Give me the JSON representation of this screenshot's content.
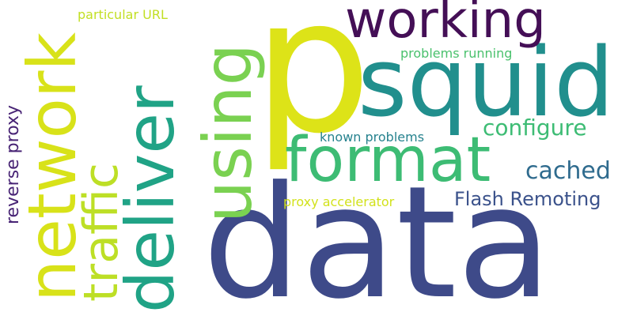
{
  "words": [
    {
      "text": "data",
      "color": "#3e4a89"
    },
    {
      "text": "p",
      "color": "#dde318"
    },
    {
      "text": "squid",
      "color": "#218f8d"
    },
    {
      "text": "format",
      "color": "#3dbc74"
    },
    {
      "text": "using",
      "color": "#7ad151"
    },
    {
      "text": "deliver",
      "color": "#20a386"
    },
    {
      "text": "network",
      "color": "#d8e219"
    },
    {
      "text": "working",
      "color": "#440f56"
    },
    {
      "text": "traffic",
      "color": "#bddf26"
    },
    {
      "text": "configure",
      "color": "#3dbc74"
    },
    {
      "text": "cached",
      "color": "#2f6b8e"
    },
    {
      "text": "Flash Remoting",
      "color": "#3b528b"
    },
    {
      "text": "reverse proxy",
      "color": "#482475"
    },
    {
      "text": "problems running",
      "color": "#4ac16d"
    },
    {
      "text": "known problems",
      "color": "#26828e"
    },
    {
      "text": "particular URL",
      "color": "#c2df23"
    },
    {
      "text": "proxy accelerator",
      "color": "#d2e21b"
    }
  ]
}
